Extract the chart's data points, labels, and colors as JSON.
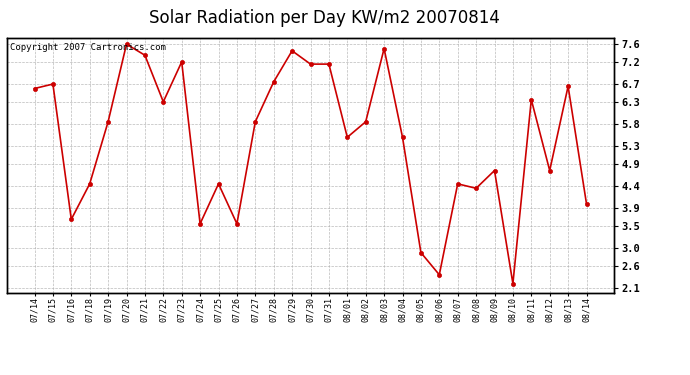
{
  "title": "Solar Radiation per Day KW/m2 20070814",
  "copyright_text": "Copyright 2007 Cartronics.com",
  "x_labels": [
    "07/14",
    "07/15",
    "07/16",
    "07/18",
    "07/19",
    "07/20",
    "07/21",
    "07/22",
    "07/23",
    "07/24",
    "07/25",
    "07/26",
    "07/27",
    "07/28",
    "07/29",
    "07/30",
    "07/31",
    "08/01",
    "08/02",
    "08/03",
    "08/04",
    "08/05",
    "08/06",
    "08/07",
    "08/08",
    "08/09",
    "08/10",
    "08/11",
    "08/12",
    "08/13",
    "08/14"
  ],
  "y_values": [
    6.6,
    6.7,
    3.65,
    4.45,
    5.85,
    7.6,
    7.35,
    6.3,
    7.2,
    3.55,
    4.45,
    3.55,
    5.85,
    6.75,
    7.45,
    7.15,
    7.15,
    5.5,
    5.85,
    7.5,
    5.5,
    2.9,
    2.4,
    4.45,
    4.35,
    4.75,
    2.2,
    6.35,
    4.75,
    6.65,
    4.0
  ],
  "line_color": "#cc0000",
  "marker_color": "#cc0000",
  "bg_color": "#ffffff",
  "plot_bg_color": "#ffffff",
  "grid_color": "#aaaaaa",
  "yticks": [
    2.1,
    2.6,
    3.0,
    3.5,
    3.9,
    4.4,
    4.9,
    5.3,
    5.8,
    6.3,
    6.7,
    7.2,
    7.6
  ],
  "ylim": [
    2.0,
    7.75
  ],
  "title_fontsize": 12,
  "copyright_fontsize": 6.5
}
